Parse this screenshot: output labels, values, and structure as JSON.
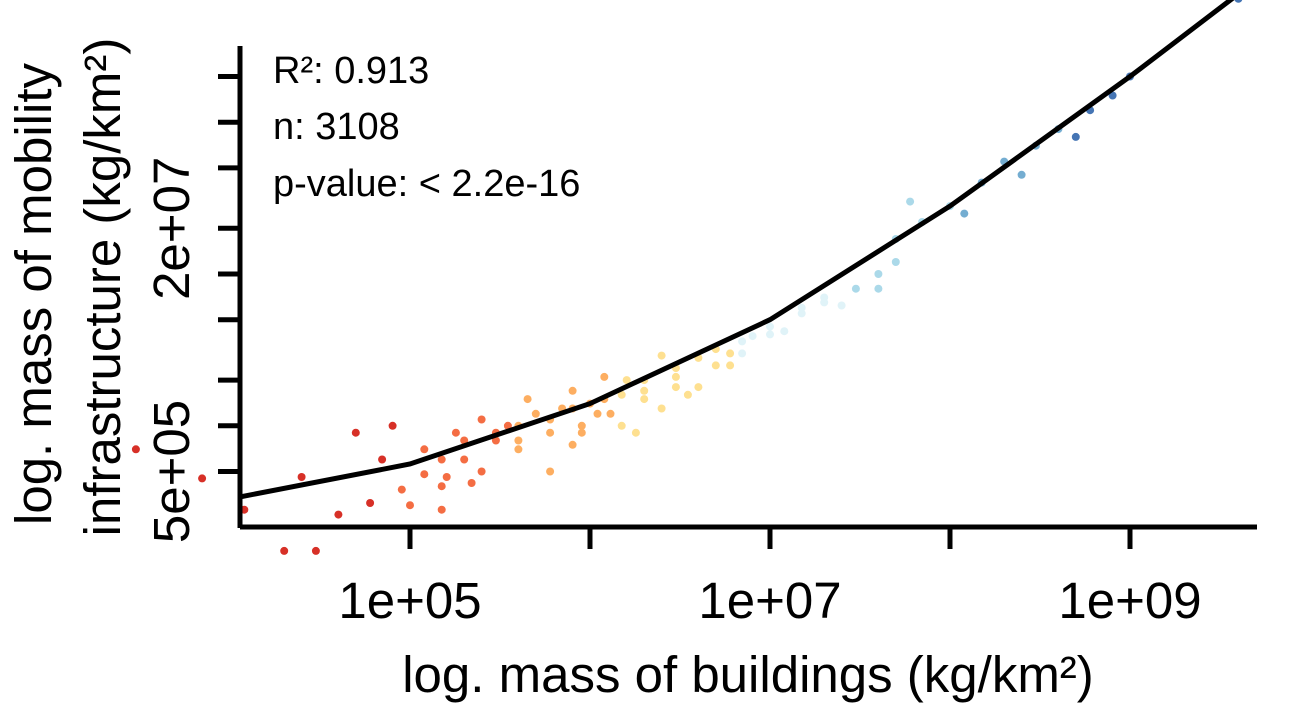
{
  "chart_data": {
    "type": "scatter",
    "xlabel": "log. mass of buildings (kg/km²)",
    "ylabel_lines": [
      "log. mass of mobility",
      "infrastructure (kg/km²)"
    ],
    "x_scale": "log10",
    "y_scale": "log10",
    "x_tick_labels": [
      "1e+05",
      "1e+07",
      "1e+09"
    ],
    "x_ticks": [
      100000,
      1000000,
      10000000,
      100000000,
      1000000000
    ],
    "y_tick_labels": [
      "5e+05",
      "2e+07"
    ],
    "y_ticks": [
      200000,
      500000,
      1000000,
      2000000,
      5000000,
      10000000,
      20000000,
      50000000,
      100000000,
      200000000,
      500000000,
      1000000000
    ],
    "stats": [
      "R²: 0.913",
      "n: 3108",
      "p-value: < 2.2e-16"
    ],
    "colors": {
      "fit_line": "#000000",
      "point_palette": [
        "#d73027",
        "#f46d43",
        "#fdae61",
        "#fee090",
        "#e0f3f8",
        "#abd9e9",
        "#74add1",
        "#4575b4"
      ]
    },
    "grid": false,
    "legend": "none",
    "fit_curve": {
      "x": [
        2000,
        10000,
        100000,
        1000000,
        10000000,
        100000000,
        1000000000,
        4000000000
      ],
      "y": [
        320000,
        340000,
        560000,
        1400000,
        5000000,
        28000000,
        200000000,
        700000000
      ]
    },
    "series": [
      {
        "values": [
          [
            20000,
            150000
          ],
          [
            30000,
            150000
          ],
          [
            3000,
            700000
          ],
          [
            7000,
            450000
          ],
          [
            12000,
            280000
          ],
          [
            25000,
            460000
          ],
          [
            40000,
            260000
          ],
          [
            60000,
            310000
          ],
          [
            100000,
            300000
          ],
          [
            150000,
            280000
          ],
          [
            50000,
            900000
          ],
          [
            80000,
            1000000
          ],
          [
            120000,
            700000
          ],
          [
            180000,
            900000
          ],
          [
            200000,
            600000
          ],
          [
            250000,
            1100000
          ],
          [
            300000,
            800000
          ],
          [
            400000,
            700000
          ],
          [
            500000,
            1200000
          ],
          [
            600000,
            500000
          ],
          [
            700000,
            1300000
          ],
          [
            900000,
            900000
          ],
          [
            1200000,
            1500000
          ],
          [
            1500000,
            1000000
          ],
          [
            2000000,
            1700000
          ],
          [
            2500000,
            1300000
          ],
          [
            3000000,
            2100000
          ],
          [
            4000000,
            1800000
          ],
          [
            6000000,
            2500000
          ],
          [
            8000000,
            3900000
          ],
          [
            120000,
            480000
          ],
          [
            160000,
            460000
          ],
          [
            220000,
            420000
          ],
          [
            90000,
            380000
          ],
          [
            70000,
            600000
          ],
          [
            350000,
            1000000
          ],
          [
            450000,
            1500000
          ],
          [
            800000,
            1700000
          ],
          [
            1100000,
            1200000
          ],
          [
            1600000,
            2000000
          ]
        ]
      },
      {
        "values": [
          [
            150000,
            600000
          ],
          [
            200000,
            800000
          ],
          [
            300000,
            900000
          ],
          [
            400000,
            1000000
          ],
          [
            600000,
            1100000
          ],
          [
            800000,
            1300000
          ],
          [
            1000000,
            1400000
          ],
          [
            1500000,
            1600000
          ],
          [
            2000000,
            2000000
          ],
          [
            3000000,
            2400000
          ],
          [
            4000000,
            2800000
          ],
          [
            5000000,
            3200000
          ],
          [
            7000000,
            3600000
          ],
          [
            10000000,
            4500000
          ],
          [
            12000000,
            4200000
          ],
          [
            15000000,
            6000000
          ],
          [
            20000000,
            6500000
          ],
          [
            1200000,
            2100000
          ],
          [
            2500000,
            2900000
          ],
          [
            6000000,
            3000000
          ]
        ]
      },
      {
        "values": [
          [
            150000,
            400000
          ],
          [
            250000,
            500000
          ],
          [
            400000,
            800000
          ],
          [
            600000,
            900000
          ],
          [
            900000,
            1000000
          ],
          [
            1300000,
            1200000
          ],
          [
            2000000,
            1500000
          ],
          [
            3000000,
            1800000
          ],
          [
            5000000,
            2500000
          ],
          [
            7000000,
            3000000
          ],
          [
            10000000,
            4000000
          ],
          [
            15000000,
            5500000
          ],
          [
            20000000,
            7000000
          ],
          [
            30000000,
            8000000
          ],
          [
            40000000,
            10000000
          ],
          [
            50000000,
            12000000
          ],
          [
            25000000,
            6200000
          ],
          [
            3500000,
            1600000
          ],
          [
            1800000,
            900000
          ],
          [
            800000,
            750000
          ]
        ]
      },
      {
        "values": [
          [
            50000000,
            17000000
          ],
          [
            70000000,
            22000000
          ],
          [
            100000000,
            28000000
          ],
          [
            150000000,
            40000000
          ],
          [
            200000000,
            55000000
          ],
          [
            300000000,
            70000000
          ],
          [
            400000000,
            90000000
          ],
          [
            600000000,
            120000000
          ],
          [
            800000000,
            150000000
          ],
          [
            1000000000,
            200000000
          ],
          [
            4000000000,
            650000000
          ],
          [
            60000000,
            30000000
          ],
          [
            120000000,
            25000000
          ],
          [
            250000000,
            45000000
          ],
          [
            500000000,
            80000000
          ],
          [
            40000000,
            8000000
          ]
        ]
      }
    ]
  }
}
